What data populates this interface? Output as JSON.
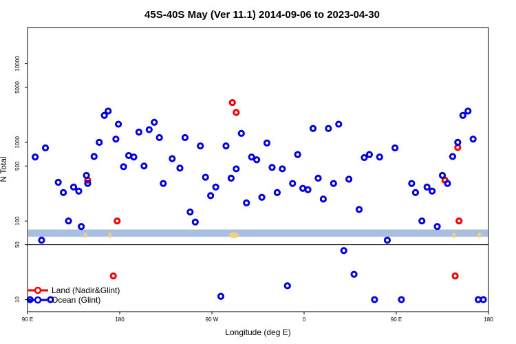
{
  "chart_data": {
    "type": "scatter",
    "title": "45S-40S May (Ver 11.1)   2014-09-06 to 2023-04-30",
    "xlabel": "Longitude (deg E)",
    "ylabel": "N Total",
    "y_scale": "log",
    "xlim": [
      90,
      450
    ],
    "ylim": [
      7,
      30000
    ],
    "x_ticks": [
      {
        "value": 90,
        "label": "90 E"
      },
      {
        "value": 162,
        "label": "180"
      },
      {
        "value": 234,
        "label": "90 W"
      },
      {
        "value": 306,
        "label": "0"
      },
      {
        "value": 378,
        "label": "90 E"
      },
      {
        "value": 450,
        "label": "180"
      }
    ],
    "y_ticks": [
      {
        "value": 10,
        "label": "10"
      },
      {
        "value": 50,
        "label": "50"
      },
      {
        "value": 100,
        "label": "100"
      },
      {
        "value": 500,
        "label": "500"
      },
      {
        "value": 1000,
        "label": "1000"
      },
      {
        "value": 5000,
        "label": "5000"
      },
      {
        "value": 10000,
        "label": "10000"
      }
    ],
    "reference_line_y": 50,
    "band": {
      "y_low": 63,
      "y_high": 78,
      "color": "#a9bfe0",
      "spot_color": "#f2d07a"
    },
    "grid": false,
    "legend_position": "bottom-left",
    "series": [
      {
        "name": "Land (Nadir&Glint)",
        "color": "#ee0000",
        "x": [
          137,
          157,
          160,
          250,
          253,
          416,
          424,
          426,
          427
        ],
        "y": [
          330,
          20,
          100,
          3200,
          2400,
          330,
          20,
          860,
          100
        ]
      },
      {
        "name": "Ocean (Glint)",
        "color": "#0000dd",
        "x": [
          92,
          96,
          101,
          104,
          108,
          114,
          118,
          122,
          126,
          130,
          132,
          136,
          137,
          142,
          146,
          150,
          153,
          159,
          161,
          165,
          169,
          173,
          177,
          181,
          185,
          189,
          193,
          196,
          203,
          209,
          213,
          217,
          221,
          225,
          229,
          233,
          237,
          241,
          245,
          249,
          253,
          257,
          261,
          265,
          269,
          273,
          277,
          281,
          285,
          289,
          293,
          297,
          301,
          305,
          309,
          313,
          317,
          321,
          325,
          329,
          333,
          337,
          341,
          345,
          349,
          353,
          357,
          361,
          365,
          371,
          377,
          382,
          390,
          393,
          398,
          402,
          406,
          410,
          414,
          418,
          422,
          426,
          430,
          434,
          438,
          442,
          446
        ],
        "y": [
          10,
          650,
          57,
          850,
          10,
          310,
          230,
          100,
          270,
          240,
          85,
          380,
          300,
          660,
          1000,
          2200,
          2500,
          1100,
          1700,
          490,
          680,
          650,
          1350,
          500,
          1450,
          1800,
          1150,
          300,
          620,
          470,
          1150,
          130,
          97,
          900,
          360,
          210,
          270,
          11,
          900,
          350,
          460,
          1300,
          170,
          650,
          600,
          200,
          980,
          480,
          230,
          460,
          15,
          300,
          700,
          260,
          250,
          1500,
          350,
          190,
          1500,
          300,
          1700,
          42,
          340,
          21,
          140,
          640,
          700,
          10,
          650,
          57,
          850,
          10,
          300,
          230,
          100,
          270,
          240,
          85,
          380,
          300,
          660,
          1000,
          2200,
          2500,
          1100,
          10,
          10
        ]
      }
    ]
  }
}
